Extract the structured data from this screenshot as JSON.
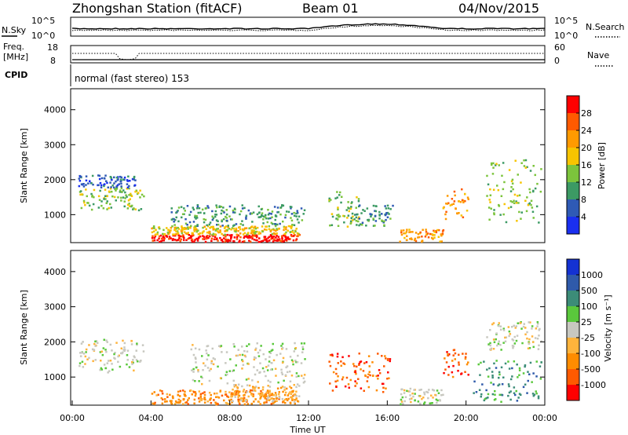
{
  "header": {
    "station": "Zhongshan Station (fitACF)",
    "beam": "Beam 01",
    "date": "04/Nov/2015"
  },
  "noise_panel": {
    "left_label": "N.Sky",
    "left_ticks": [
      "10^5",
      "10^0"
    ],
    "right_label": "N.Search",
    "right_ticks": [
      "10^5",
      "10^0"
    ]
  },
  "freq_panel": {
    "left_label_line1": "Freq.",
    "left_label_line2": "[MHz]",
    "left_ticks": [
      "18",
      "8"
    ],
    "right_label": "Nave",
    "right_ticks": [
      "60",
      "0"
    ]
  },
  "cpid_panel": {
    "label": "CPID",
    "text": "normal (fast stereo) 153"
  },
  "x_axis": {
    "label": "Time UT",
    "ticks": [
      "00:00",
      "04:00",
      "08:00",
      "12:00",
      "16:00",
      "20:00",
      "00:00"
    ]
  },
  "chart_data": [
    {
      "type": "heatmap",
      "name": "power",
      "ylabel": "Slant Range [km]",
      "yticks": [
        "1000",
        "2000",
        "3000",
        "4000"
      ],
      "ylim": [
        200,
        4600
      ],
      "xlim_hours": [
        0,
        24
      ],
      "colorbar_label": "Power [dB]",
      "colorbar_ticks": [
        "28",
        "24",
        "20",
        "16",
        "12",
        "8",
        "4"
      ],
      "colorbar_colors": [
        "#ff0000",
        "#ff5a00",
        "#ff9a00",
        "#f7c400",
        "#7cc43c",
        "#3c9a64",
        "#2f5ab5",
        "#1a2ff0"
      ],
      "regions": [
        {
          "t0": 0.3,
          "t1": 3.6,
          "r0": 1150,
          "r1": 1800,
          "level": 3
        },
        {
          "t0": 0.3,
          "t1": 3.2,
          "r0": 1800,
          "r1": 2150,
          "level": 1
        },
        {
          "t0": 4.0,
          "t1": 11.5,
          "r0": 250,
          "r1": 450,
          "level": 7
        },
        {
          "t0": 4.0,
          "t1": 11.5,
          "r0": 450,
          "r1": 700,
          "level": 4
        },
        {
          "t0": 5.0,
          "t1": 11.8,
          "r0": 700,
          "r1": 1300,
          "level": 2
        },
        {
          "t0": 13.0,
          "t1": 14.6,
          "r0": 600,
          "r1": 1700,
          "level": 3
        },
        {
          "t0": 14.0,
          "t1": 16.3,
          "r0": 700,
          "r1": 1300,
          "level": 2
        },
        {
          "t0": 16.6,
          "t1": 18.8,
          "r0": 250,
          "r1": 600,
          "level": 5
        },
        {
          "t0": 18.8,
          "t1": 20.1,
          "r0": 900,
          "r1": 1800,
          "level": 5
        },
        {
          "t0": 21.0,
          "t1": 23.8,
          "r0": 800,
          "r1": 2600,
          "level": 3
        }
      ]
    },
    {
      "type": "heatmap",
      "name": "velocity",
      "ylabel": "Slant Range [km]",
      "yticks": [
        "1000",
        "2000",
        "3000",
        "4000"
      ],
      "ylim": [
        200,
        4600
      ],
      "xlim_hours": [
        0,
        24
      ],
      "colorbar_label": "Velocity [m s⁻¹]",
      "colorbar_ticks": [
        "1000",
        "500",
        "100",
        "25",
        "-25",
        "-100",
        "-500",
        "-1000"
      ],
      "colorbar_colors": [
        "#1432d2",
        "#2f5aaa",
        "#3c8c78",
        "#5ac83c",
        "#c8c8c0",
        "#ffb43c",
        "#ff8c00",
        "#ff5a00",
        "#ff0000"
      ],
      "regions": [
        {
          "t0": 0.3,
          "t1": 3.6,
          "r0": 1150,
          "r1": 2100,
          "level": 4
        },
        {
          "t0": 4.0,
          "t1": 11.5,
          "r0": 250,
          "r1": 650,
          "level": 6
        },
        {
          "t0": 8.0,
          "t1": 11.5,
          "r0": 300,
          "r1": 800,
          "level": 5
        },
        {
          "t0": 6.0,
          "t1": 11.8,
          "r0": 800,
          "r1": 2000,
          "level": 4
        },
        {
          "t0": 13.0,
          "t1": 16.3,
          "r0": 600,
          "r1": 1700,
          "level": 7
        },
        {
          "t0": 16.6,
          "t1": 18.8,
          "r0": 250,
          "r1": 700,
          "level": 4
        },
        {
          "t0": 18.8,
          "t1": 20.1,
          "r0": 900,
          "r1": 1800,
          "level": 7
        },
        {
          "t0": 20.3,
          "t1": 23.8,
          "r0": 300,
          "r1": 1500,
          "level": 2
        },
        {
          "t0": 21.0,
          "t1": 23.8,
          "r0": 1800,
          "r1": 2600,
          "level": 4
        }
      ]
    }
  ]
}
